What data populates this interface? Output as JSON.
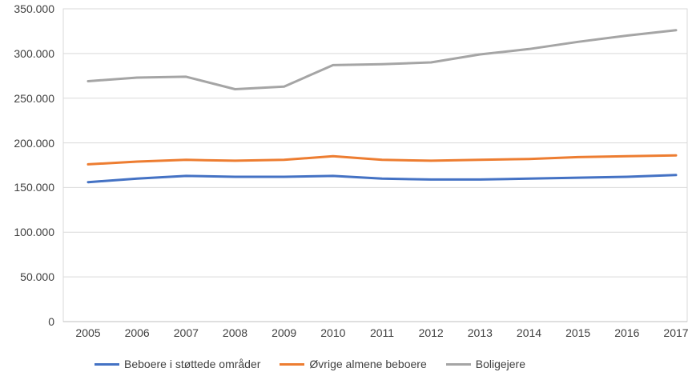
{
  "chart_data": {
    "type": "line",
    "title": "",
    "xlabel": "",
    "ylabel": "",
    "categories": [
      "2005",
      "2006",
      "2007",
      "2008",
      "2009",
      "2010",
      "2011",
      "2012",
      "2013",
      "2014",
      "2015",
      "2016",
      "2017"
    ],
    "series": [
      {
        "name": "Beboere i støttede områder",
        "color": "#4472C4",
        "values": [
          156000,
          160000,
          163000,
          162000,
          162000,
          163000,
          160000,
          159000,
          159000,
          160000,
          161000,
          162000,
          164000
        ]
      },
      {
        "name": "Øvrige almene beboere",
        "color": "#ED7D31",
        "values": [
          176000,
          179000,
          181000,
          180000,
          181000,
          185000,
          181000,
          180000,
          181000,
          182000,
          184000,
          185000,
          186000
        ]
      },
      {
        "name": "Boligejere",
        "color": "#A5A5A5",
        "values": [
          269000,
          273000,
          274000,
          260000,
          263000,
          287000,
          288000,
          290000,
          299000,
          305000,
          313000,
          320000,
          326000
        ]
      }
    ],
    "ylim": [
      0,
      350000
    ],
    "ytick_step": 50000,
    "ytick_labels": [
      "0",
      "50.000",
      "100.000",
      "150.000",
      "200.000",
      "250.000",
      "300.000",
      "350.000"
    ],
    "grid": true,
    "legend_position": "bottom",
    "colors": {
      "gridline": "#D9D9D9",
      "axis_line": "#BFBFBF",
      "tick_text": "#404040",
      "background": "#FFFFFF"
    }
  }
}
